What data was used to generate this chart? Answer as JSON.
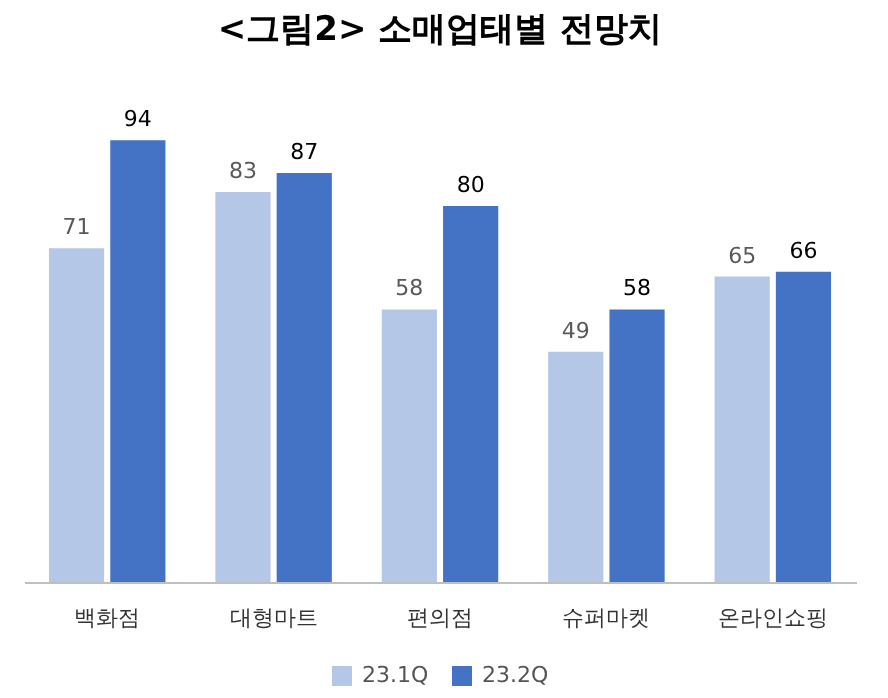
{
  "chart_data": {
    "type": "bar",
    "title": "<그림2> 소매업태별 전망치",
    "categories": [
      "백화점",
      "대형마트",
      "편의점",
      "슈퍼마켓",
      "온라인쇼핑"
    ],
    "series": [
      {
        "name": "23.1Q",
        "color": "#b4c7e7",
        "values": [
          71,
          83,
          58,
          49,
          65
        ]
      },
      {
        "name": "23.2Q",
        "color": "#4472c4",
        "values": [
          94,
          87,
          80,
          58,
          66
        ]
      }
    ],
    "data_labels": true,
    "legend": "bottom",
    "grid": false
  }
}
